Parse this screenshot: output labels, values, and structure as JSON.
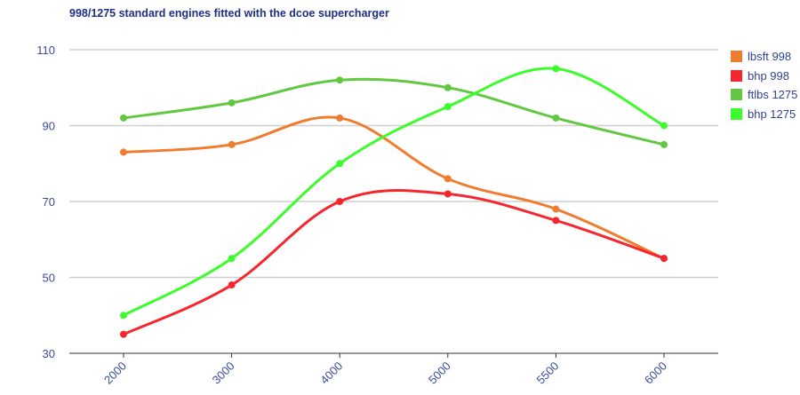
{
  "chart_data": {
    "type": "line",
    "title": "998/1275 standard engines fitted with the dcoe supercharger",
    "xlabel": "",
    "ylabel": "",
    "categories": [
      "2000",
      "3000",
      "4000",
      "5000",
      "5500",
      "6000"
    ],
    "ylim": [
      30,
      110
    ],
    "yticks": [
      30,
      50,
      70,
      90,
      110
    ],
    "grid": true,
    "legend_position": "right",
    "series": [
      {
        "name": "lbsft 998",
        "color": "#f07c30",
        "values": [
          83,
          85,
          92,
          76,
          68,
          55
        ]
      },
      {
        "name": "bhp 998",
        "color": "#f5262e",
        "values": [
          35,
          48,
          70,
          72,
          65,
          55
        ]
      },
      {
        "name": "ftlbs 1275",
        "color": "#62c842",
        "values": [
          92,
          96,
          102,
          100,
          92,
          85
        ]
      },
      {
        "name": "bhp 1275",
        "color": "#3dfc2c",
        "values": [
          40,
          55,
          80,
          95,
          105,
          90
        ]
      }
    ]
  }
}
